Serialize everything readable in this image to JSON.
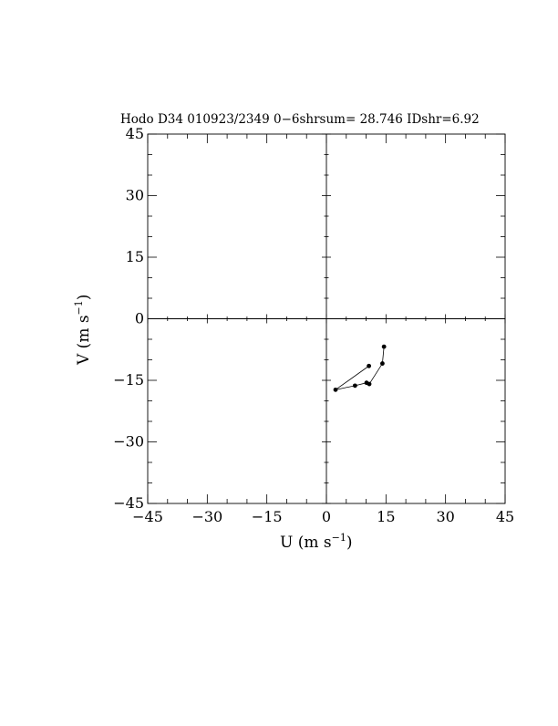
{
  "chart_data": {
    "type": "line",
    "title": "Hodo D34 010923/2349 0−6shrsum= 28.746 IDshr=6.92",
    "xlabel_main": "U  (m  s",
    "xlabel_exp": "−1",
    "xlabel_close": ")",
    "ylabel_main": "V  (m  s",
    "ylabel_exp": "−1",
    "ylabel_close": ")",
    "xlim": [
      -45,
      45
    ],
    "ylim": [
      -45,
      45
    ],
    "major_ticks": [
      -45,
      -30,
      -15,
      0,
      15,
      30,
      45
    ],
    "x_tick_labels": [
      "−45",
      "−30",
      "−15",
      "0",
      "15",
      "30",
      "45"
    ],
    "y_tick_labels": [
      "−45",
      "−30",
      "−15",
      "0",
      "15",
      "30",
      "45"
    ],
    "minor_tick_step": 5,
    "grid": false,
    "zero_axes": true,
    "points": [
      {
        "x": 14.5,
        "y": -6.8
      },
      {
        "x": 14.1,
        "y": -10.9
      },
      {
        "x": 10.8,
        "y": -15.9
      },
      {
        "x": 10.1,
        "y": -15.6
      },
      {
        "x": 7.2,
        "y": -16.3
      },
      {
        "x": 2.3,
        "y": -17.3
      },
      {
        "x": 10.7,
        "y": -11.5
      }
    ]
  }
}
